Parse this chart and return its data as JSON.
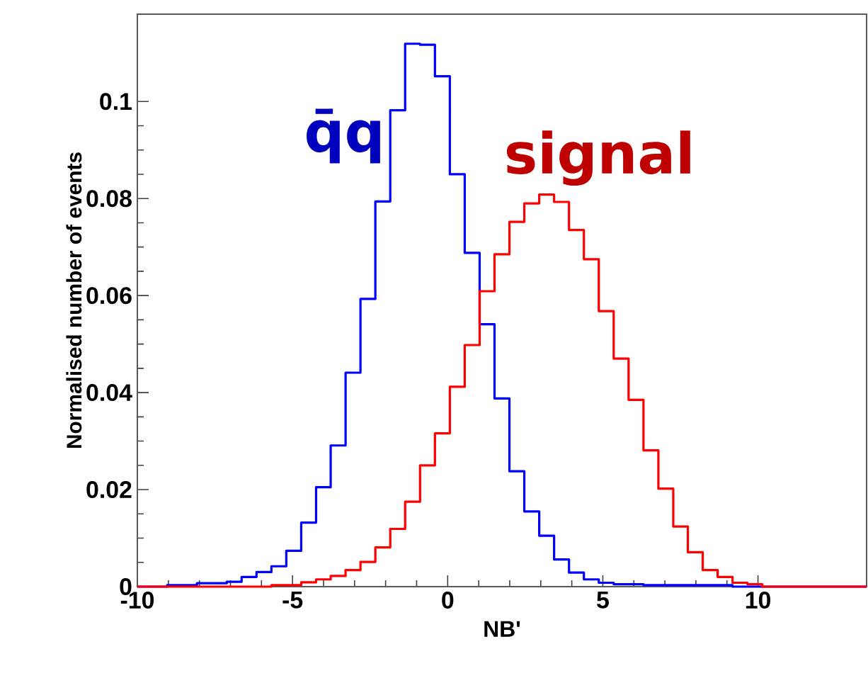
{
  "chart_data": {
    "type": "histogram",
    "xlabel": "NB'",
    "ylabel": "Normalised number of events",
    "bins": [
      -10,
      -9.52,
      -9.04,
      -8.56,
      -8.08,
      -7.6,
      -7.12,
      -6.64,
      -6.16,
      -5.68,
      -5.2,
      -4.72,
      -4.24,
      -3.77,
      -3.29,
      -2.81,
      -2.33,
      -1.85,
      -1.37,
      -0.89,
      -0.41,
      0.07,
      0.55,
      1.03,
      1.51,
      1.99,
      2.47,
      2.95,
      3.43,
      3.91,
      4.39,
      4.87,
      5.35,
      5.83,
      6.31,
      6.79,
      7.27,
      7.74,
      8.22,
      8.7,
      9.18,
      9.66,
      10.14,
      10.62,
      11.1,
      11.58,
      12.06,
      12.54,
      13.02,
      13.5
    ],
    "series": [
      {
        "name": "q̄q",
        "color": "#0000ff",
        "values": [
          0,
          0,
          0.0003,
          0.0003,
          0.0007,
          0.0007,
          0.001,
          0.002,
          0.003,
          0.0042,
          0.0074,
          0.0132,
          0.0205,
          0.0291,
          0.0441,
          0.0593,
          0.0794,
          0.0982,
          0.1119,
          0.1117,
          0.1052,
          0.085,
          0.0688,
          0.0541,
          0.0388,
          0.0238,
          0.0155,
          0.0105,
          0.0056,
          0.0029,
          0.0015,
          0.0008,
          0.0005,
          0.0005,
          0.0003,
          0.0003,
          0.0003,
          0.0003,
          0.0003,
          0.0003,
          0,
          0,
          0,
          0,
          0,
          0,
          0,
          0,
          0
        ]
      },
      {
        "name": "signal",
        "color": "#ff0000",
        "values": [
          0,
          0,
          0,
          0,
          0,
          0,
          0,
          0,
          0,
          0.0003,
          0.0003,
          0.0009,
          0.0015,
          0.0022,
          0.0034,
          0.0051,
          0.0081,
          0.0119,
          0.0175,
          0.025,
          0.0316,
          0.0412,
          0.0498,
          0.0609,
          0.0685,
          0.0752,
          0.079,
          0.0808,
          0.0793,
          0.0735,
          0.0675,
          0.0568,
          0.047,
          0.0385,
          0.0281,
          0.0202,
          0.0124,
          0.0071,
          0.0034,
          0.002,
          0.0008,
          0.0005,
          0,
          0,
          0,
          0,
          0,
          0,
          0
        ]
      }
    ],
    "xlim": [
      -10,
      13.5
    ],
    "ylim": [
      0,
      0.118
    ],
    "xticks": [
      -10,
      -5,
      0,
      5,
      10
    ],
    "yticks": [
      0,
      0.02,
      0.04,
      0.06,
      0.08,
      0.1
    ]
  }
}
